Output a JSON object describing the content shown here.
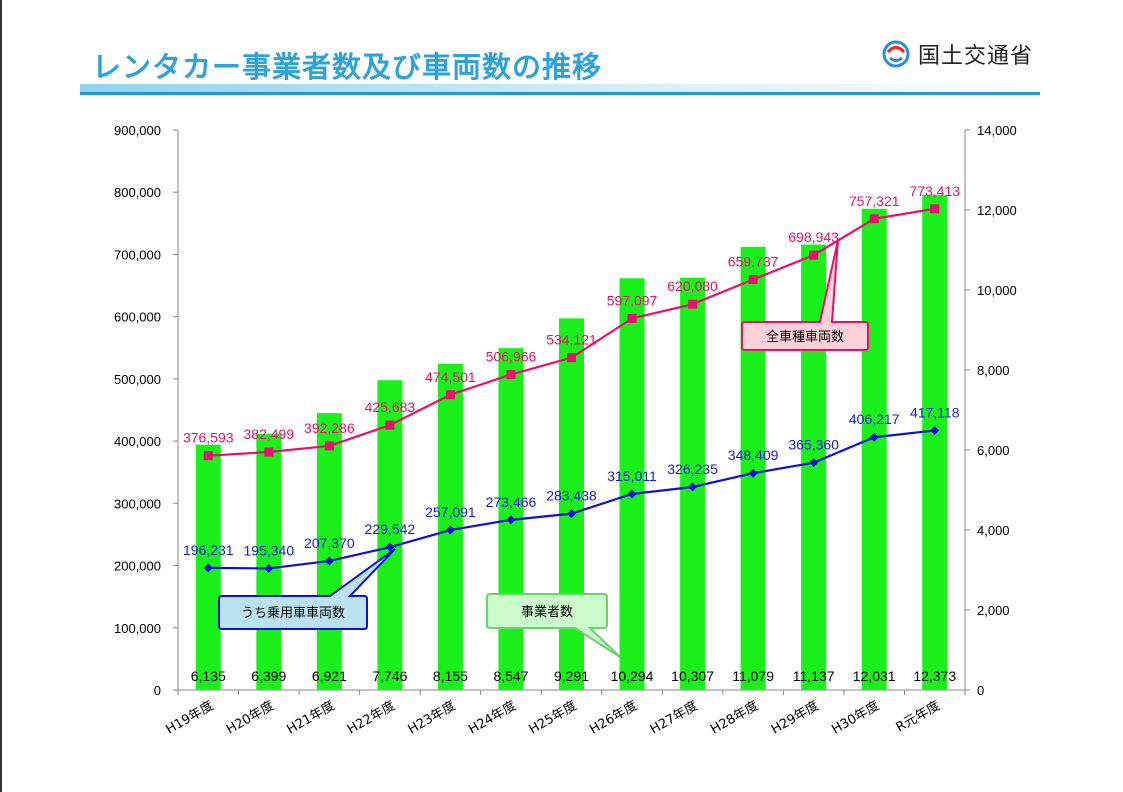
{
  "header": {
    "title": "レンタカー事業者数及び車両数の推移",
    "logo_text": "国土交通省"
  },
  "colors": {
    "bars": "#1af11a",
    "all_line": "#e8106e",
    "passenger_line": "#1010d8",
    "title": "#2da3d9"
  },
  "chart_data": {
    "type": "bar",
    "title": "レンタカー事業者数及び車両数の推移",
    "categories": [
      "H19年度",
      "H20年度",
      "H21年度",
      "H22年度",
      "H23年度",
      "H24年度",
      "H25年度",
      "H26年度",
      "H27年度",
      "H28年度",
      "H29年度",
      "H30年度",
      "R元年度"
    ],
    "y_left": {
      "min": 0,
      "max": 900000,
      "step": 100000,
      "tick_labels": [
        "0",
        "100,000",
        "200,000",
        "300,000",
        "400,000",
        "500,000",
        "600,000",
        "700,000",
        "800,000",
        "900,000"
      ]
    },
    "y_right": {
      "min": 0,
      "max": 14000,
      "step": 2000,
      "tick_labels": [
        "0",
        "2,000",
        "4,000",
        "6,000",
        "8,000",
        "10,000",
        "12,000",
        "14,000"
      ]
    },
    "series": [
      {
        "name": "事業者数",
        "type": "bar",
        "axis": "right",
        "values": [
          6135,
          6399,
          6921,
          7746,
          8155,
          8547,
          9291,
          10294,
          10307,
          11079,
          11137,
          12031,
          12373
        ],
        "labels": [
          "6,135",
          "6,399",
          "6,921",
          "7,746",
          "8,155",
          "8,547",
          "9,291",
          "10,294",
          "10,307",
          "11,079",
          "11,137",
          "12,031",
          "12,373"
        ]
      },
      {
        "name": "全車種車両数",
        "type": "line",
        "axis": "left",
        "values": [
          376593,
          382499,
          392286,
          425683,
          474501,
          506966,
          534121,
          597097,
          620080,
          659737,
          698943,
          757321,
          773413
        ],
        "labels": [
          "376,593",
          "382,499",
          "392,286",
          "425,683",
          "474,501",
          "506,966",
          "534,121",
          "597,097",
          "620,080",
          "659,737",
          "698,943",
          "757,321",
          "773,413"
        ]
      },
      {
        "name": "うち乗用車車両数",
        "type": "line",
        "axis": "left",
        "values": [
          196231,
          195340,
          207370,
          229542,
          257091,
          273466,
          283438,
          315011,
          326235,
          348409,
          365360,
          406217,
          417118
        ],
        "labels": [
          "196,231",
          "195,340",
          "207,370",
          "229,542",
          "257,091",
          "273,466",
          "283,438",
          "315,011",
          "326,235",
          "348,409",
          "365,360",
          "406,217",
          "417,118"
        ]
      }
    ],
    "callouts": {
      "all": "全車種車両数",
      "passenger": "うち乗用車車両数",
      "business": "事業者数"
    },
    "grid": false
  }
}
